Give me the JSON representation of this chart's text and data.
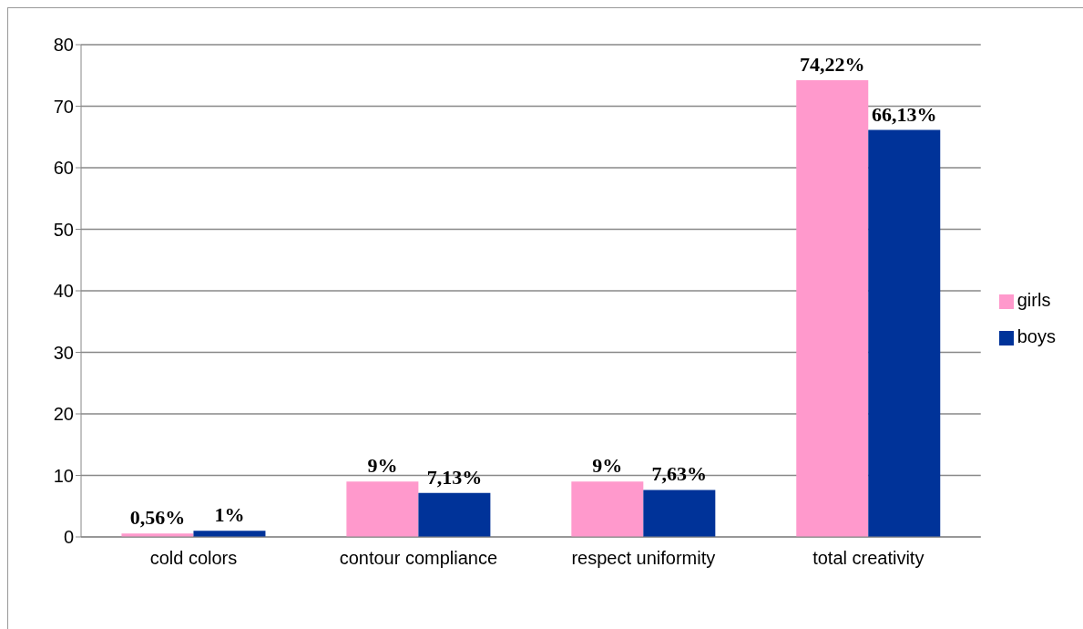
{
  "chart_data": {
    "type": "bar",
    "categories": [
      "cold colors",
      "contour compliance",
      "respect uniformity",
      "total creativity"
    ],
    "series": [
      {
        "name": "girls",
        "color": "#ff99cc",
        "values": [
          0.56,
          9,
          9,
          74.22
        ],
        "value_labels": [
          "0,56%",
          "9%",
          "9%",
          "74,22%"
        ]
      },
      {
        "name": "boys",
        "color": "#003399",
        "values": [
          1,
          7.13,
          7.63,
          66.13
        ],
        "value_labels": [
          "1%",
          "7,13%",
          "7,63%",
          "66,13%"
        ]
      }
    ],
    "ylim": [
      0,
      80
    ],
    "yticks": [
      0,
      10,
      20,
      30,
      40,
      50,
      60,
      70,
      80
    ],
    "grid": "y",
    "legend": "right"
  }
}
